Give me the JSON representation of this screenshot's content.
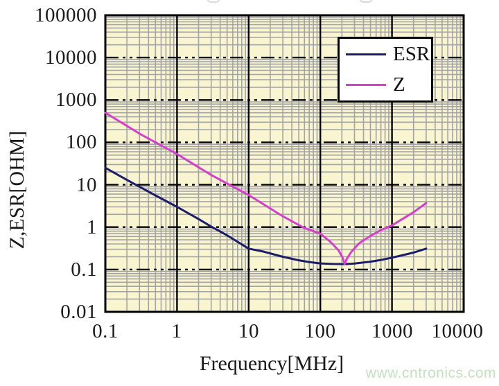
{
  "page": {
    "background": "#ffffff"
  },
  "watermark": {
    "text": "www.cntronics.com",
    "color": "#c2e2be"
  },
  "colors": {
    "plot_background": "#f8f5d0",
    "minor_grid": "#a4a4a4",
    "major_grid": "#000000",
    "frame": "#000000",
    "esr_line": "#1c1c6a",
    "z_line": "#d63fcc",
    "text": "#1a1a1a",
    "watermark": "#c2e2be"
  },
  "chart_data": {
    "type": "line",
    "title": "",
    "xlabel": "Frequency[MHz]",
    "ylabel": "Z,ESR[OHM]",
    "x_scale": "log",
    "y_scale": "log",
    "xlim": [
      0.1,
      10000
    ],
    "ylim": [
      0.01,
      100000
    ],
    "x_ticks": [
      "0.1",
      "1",
      "10",
      "100",
      "1000",
      "10000"
    ],
    "y_ticks": [
      "100000",
      "10000",
      "1000",
      "100",
      "10",
      "1",
      "0.1",
      "0.01"
    ],
    "grid": {
      "major": true,
      "minor": true,
      "major_x_style": "solid",
      "major_y_style": "long-dash-dot-dot"
    },
    "plot_bg": "#f8f5d0",
    "legend": {
      "position": "top-right",
      "entries": [
        "ESR",
        "Z"
      ]
    },
    "series": [
      {
        "name": "ESR",
        "color": "#1c1c6a",
        "points": [
          [
            0.1,
            25
          ],
          [
            0.2,
            13
          ],
          [
            0.3,
            9
          ],
          [
            0.5,
            5.6
          ],
          [
            1,
            3.0
          ],
          [
            2,
            1.55
          ],
          [
            3,
            1.03
          ],
          [
            5,
            0.64
          ],
          [
            10,
            0.31
          ],
          [
            16,
            0.265
          ],
          [
            30,
            0.2
          ],
          [
            50,
            0.165
          ],
          [
            70,
            0.15
          ],
          [
            100,
            0.139
          ],
          [
            150,
            0.135
          ],
          [
            220,
            0.134
          ],
          [
            300,
            0.138
          ],
          [
            500,
            0.153
          ],
          [
            700,
            0.168
          ],
          [
            1000,
            0.19
          ],
          [
            2000,
            0.25
          ],
          [
            3000,
            0.31
          ]
        ]
      },
      {
        "name": "Z",
        "color": "#d63fcc",
        "points": [
          [
            0.1,
            500
          ],
          [
            0.3,
            160
          ],
          [
            1,
            53
          ],
          [
            3,
            17
          ],
          [
            10,
            5.7
          ],
          [
            30,
            1.8
          ],
          [
            60,
            0.95
          ],
          [
            100,
            0.7
          ],
          [
            140,
            0.44
          ],
          [
            180,
            0.28
          ],
          [
            205,
            0.19
          ],
          [
            218,
            0.134
          ],
          [
            235,
            0.18
          ],
          [
            270,
            0.26
          ],
          [
            350,
            0.42
          ],
          [
            500,
            0.62
          ],
          [
            700,
            0.85
          ],
          [
            1000,
            1.1
          ],
          [
            2000,
            2.25
          ],
          [
            3000,
            3.7
          ]
        ]
      }
    ],
    "annotations": {
      "resonance_dip": {
        "frequency_mhz": 218,
        "ohm": 0.134
      }
    }
  }
}
